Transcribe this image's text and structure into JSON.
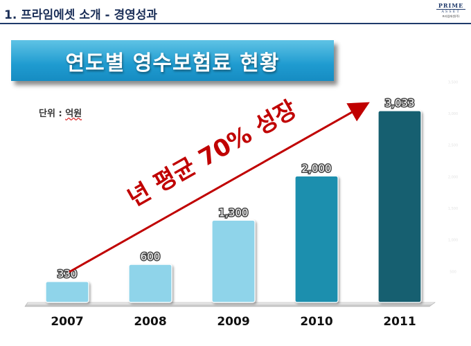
{
  "header": {
    "title": "1. 프라임에셋 소개 - 경영성과",
    "logo_line1": "PRIME",
    "logo_line2": "ASSET",
    "logo_line3": "프라임에셋(주)"
  },
  "banner": {
    "title": "연도별 영수보험료 현황"
  },
  "unit": {
    "label": "단위 :",
    "value": "억원"
  },
  "annotation": {
    "text": "년 평균 70% 성장"
  },
  "colors": {
    "arrow": "#c00000",
    "bar_light": "#8fd4ea",
    "bar_mid": "#1f8fae",
    "bar_dark": "#155f70"
  },
  "chart_data": {
    "type": "bar",
    "categories": [
      "2007",
      "2008",
      "2009",
      "2010",
      "2011"
    ],
    "values": [
      330,
      600,
      1300,
      2000,
      3033
    ],
    "data_labels": [
      "330",
      "600",
      "1,300",
      "2,000",
      "3,033"
    ],
    "ylim": [
      0,
      3500
    ],
    "y_ticks": [
      500,
      1000,
      1500,
      2000,
      2500,
      3000,
      3500
    ],
    "y_tick_labels": [
      "500",
      "1,000",
      "1,500",
      "2,000",
      "2,500",
      "3,000",
      "3,500"
    ],
    "grid": false
  }
}
